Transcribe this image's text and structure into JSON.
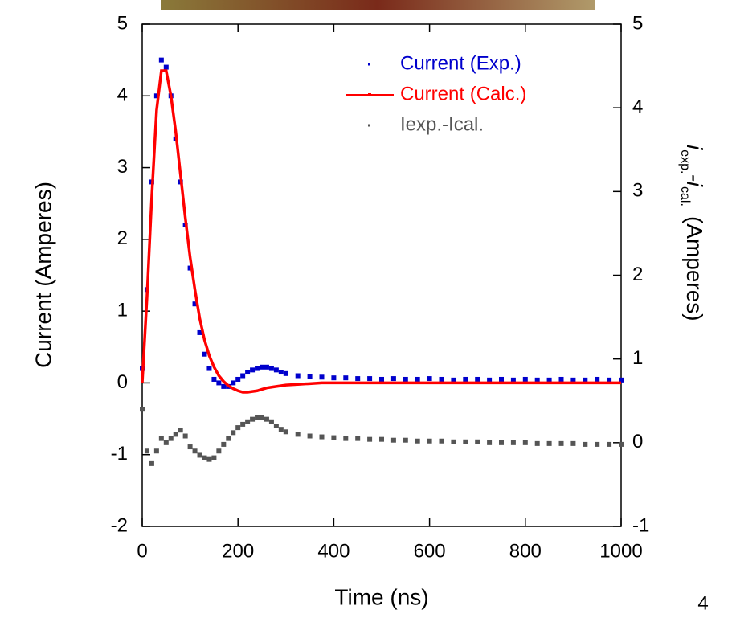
{
  "page_number": "4",
  "chart_data": {
    "type": "scatter-line",
    "xlabel": "Time (ns)",
    "ylabel": "Current (Amperes)",
    "y2label_parts": [
      "i",
      "exp.",
      "-i",
      "cal.",
      "(Amperes)"
    ],
    "xlim": [
      0,
      1000
    ],
    "xticks": [
      0,
      200,
      400,
      600,
      800,
      1000
    ],
    "ylim": [
      -2,
      5
    ],
    "yticks": [
      -2,
      -1,
      0,
      1,
      2,
      3,
      4,
      5
    ],
    "y2lim": [
      -1,
      5
    ],
    "y2ticks": [
      -1,
      0,
      1,
      2,
      3,
      4,
      5
    ],
    "legend": "upper right",
    "x": [
      0,
      10,
      20,
      30,
      40,
      50,
      60,
      70,
      80,
      90,
      100,
      110,
      120,
      130,
      140,
      150,
      160,
      170,
      180,
      190,
      200,
      210,
      220,
      230,
      240,
      250,
      260,
      270,
      280,
      290,
      300,
      325,
      350,
      375,
      400,
      425,
      450,
      475,
      500,
      525,
      550,
      575,
      600,
      625,
      650,
      675,
      700,
      725,
      750,
      775,
      800,
      825,
      850,
      875,
      900,
      925,
      950,
      975,
      1000
    ],
    "series": [
      {
        "name": "Current (Exp.)",
        "color": "#0000cc",
        "style": "dots",
        "values": [
          0.2,
          1.3,
          2.8,
          4.0,
          4.5,
          4.4,
          4.0,
          3.4,
          2.8,
          2.2,
          1.6,
          1.1,
          0.7,
          0.4,
          0.2,
          0.05,
          0.0,
          -0.05,
          -0.05,
          0.0,
          0.05,
          0.1,
          0.15,
          0.18,
          0.2,
          0.22,
          0.22,
          0.2,
          0.18,
          0.15,
          0.13,
          0.1,
          0.09,
          0.08,
          0.07,
          0.07,
          0.06,
          0.06,
          0.05,
          0.06,
          0.05,
          0.05,
          0.06,
          0.05,
          0.04,
          0.05,
          0.05,
          0.04,
          0.05,
          0.04,
          0.05,
          0.04,
          0.04,
          0.05,
          0.04,
          0.04,
          0.05,
          0.04,
          0.04
        ]
      },
      {
        "name": "Current (Calc.)",
        "color": "#ff0000",
        "style": "line",
        "values": [
          0,
          1.2,
          2.6,
          3.8,
          4.35,
          4.35,
          4.0,
          3.5,
          2.9,
          2.3,
          1.75,
          1.3,
          0.9,
          0.6,
          0.38,
          0.22,
          0.1,
          0.02,
          -0.04,
          -0.08,
          -0.11,
          -0.13,
          -0.13,
          -0.12,
          -0.11,
          -0.09,
          -0.07,
          -0.06,
          -0.05,
          -0.04,
          -0.03,
          -0.02,
          -0.01,
          0,
          0,
          0,
          0,
          0,
          0,
          0,
          0,
          0,
          0,
          0,
          0,
          0,
          0,
          0,
          0,
          0,
          0,
          0,
          0,
          0,
          0,
          0,
          0,
          0,
          0
        ]
      },
      {
        "name": "Iexp.-Ical.",
        "color": "#555555",
        "style": "dots",
        "axis": "y2",
        "values": [
          0.4,
          -0.1,
          -0.25,
          -0.1,
          0.05,
          0.0,
          0.05,
          0.1,
          0.15,
          0.08,
          -0.05,
          -0.1,
          -0.15,
          -0.18,
          -0.2,
          -0.18,
          -0.1,
          -0.02,
          0.05,
          0.12,
          0.18,
          0.22,
          0.25,
          0.28,
          0.3,
          0.3,
          0.28,
          0.25,
          0.2,
          0.16,
          0.13,
          0.1,
          0.08,
          0.07,
          0.06,
          0.05,
          0.05,
          0.04,
          0.04,
          0.03,
          0.03,
          0.02,
          0.02,
          0.02,
          0.01,
          0.01,
          0.01,
          0.0,
          0.0,
          0.0,
          0.0,
          -0.01,
          -0.01,
          -0.01,
          -0.01,
          -0.02,
          -0.02,
          -0.02,
          -0.02
        ]
      }
    ]
  }
}
